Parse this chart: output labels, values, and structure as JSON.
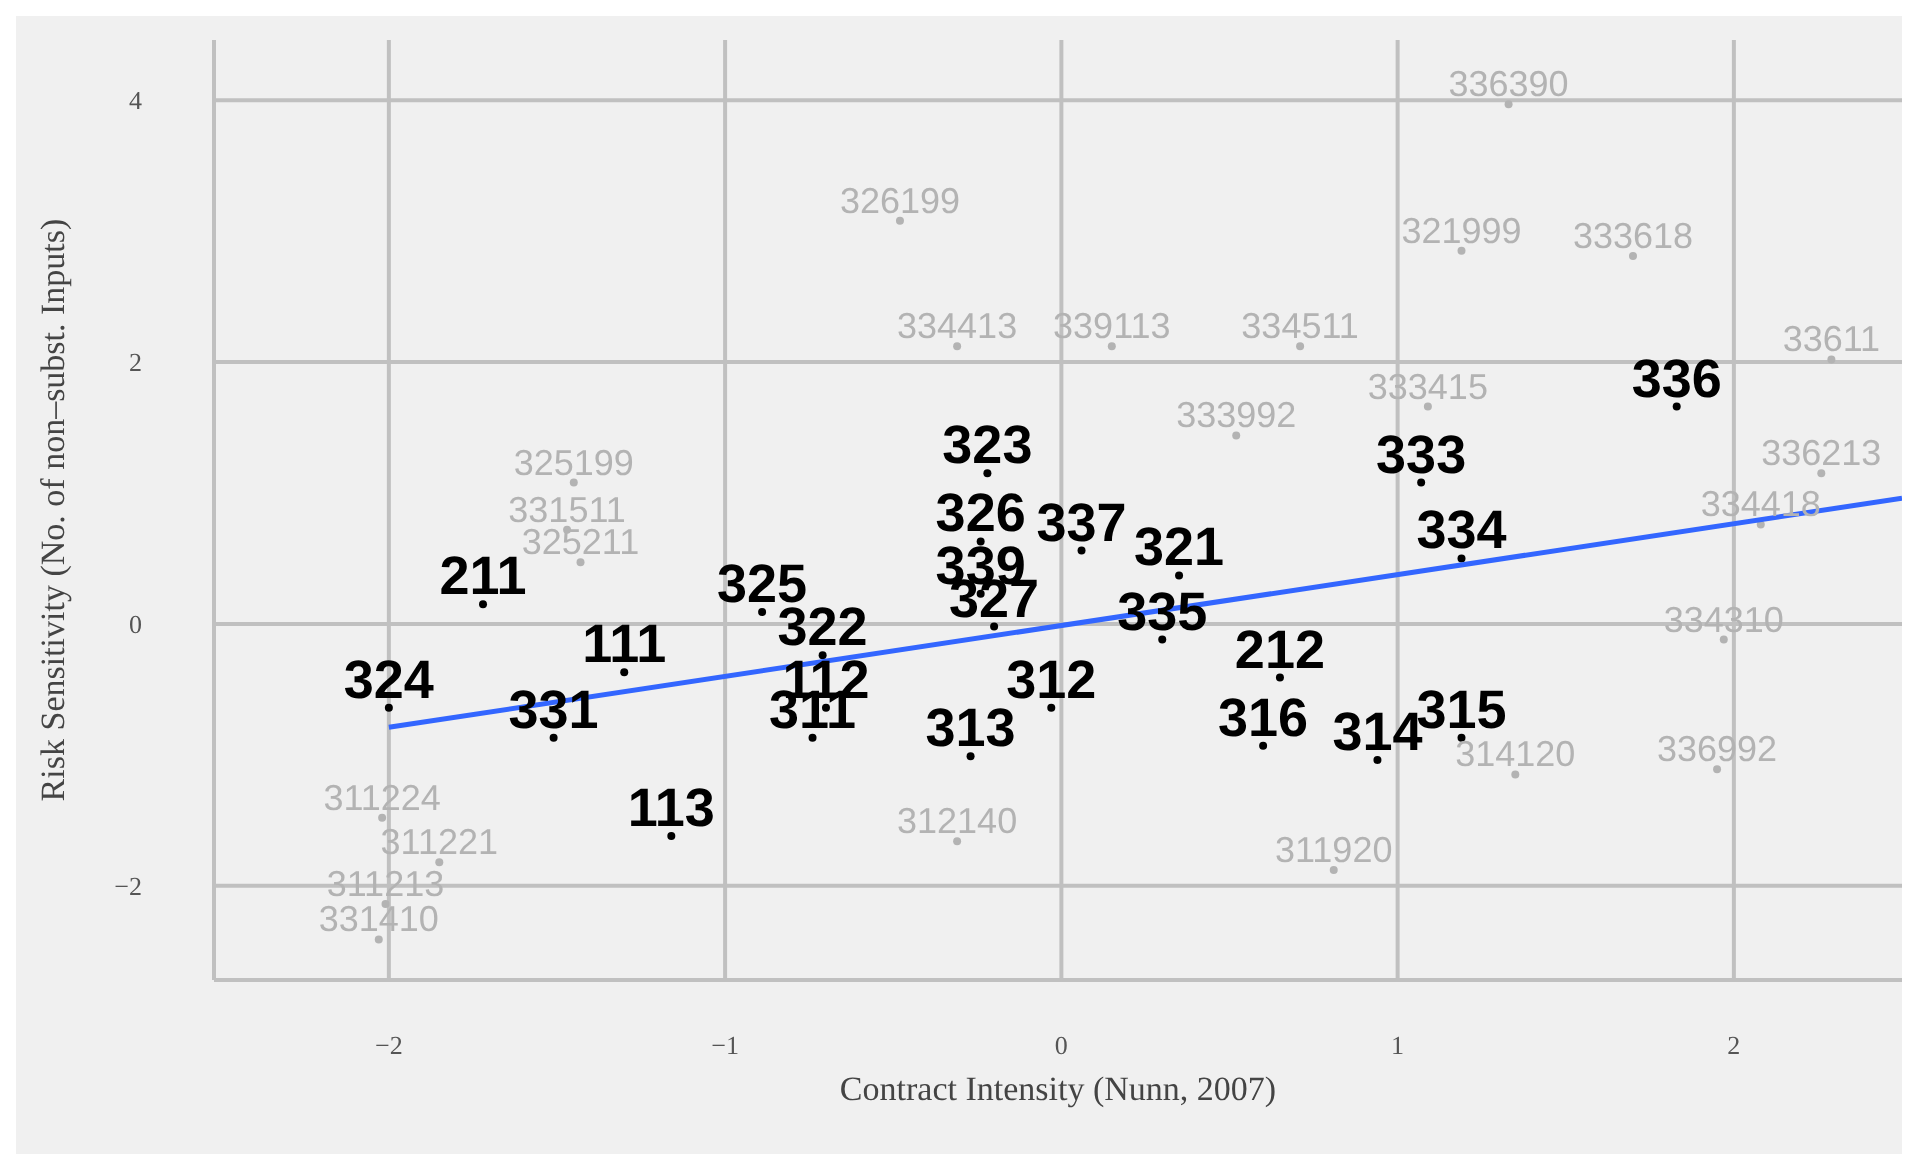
{
  "chart_data": {
    "type": "scatter",
    "xlabel": "Contract Intensity (Nunn, 2007)",
    "ylabel": "Risk Sensitivity (No. of non–subst. Inputs)",
    "xlim": [
      -2.52,
      2.5
    ],
    "ylim": [
      -2.72,
      4.46
    ],
    "xticks": [
      {
        "value": -2,
        "label": "−2"
      },
      {
        "value": -1,
        "label": "−1"
      },
      0,
      1,
      2
    ],
    "yticks": [
      {
        "value": -2,
        "label": "−2"
      },
      0,
      2,
      4
    ],
    "grid": true,
    "series": [
      {
        "type": "scatter",
        "marker": "circle",
        "color": "#b3b3b3",
        "x": [
          1.33,
          -0.48,
          1.19,
          1.7,
          -0.31,
          0.15,
          0.71,
          2.29,
          -1.45,
          -1.47,
          -1.43,
          2.26,
          2.08,
          1.97,
          1.95,
          1.35,
          0.81,
          -2.02,
          -1.85,
          -2.01,
          -2.03,
          -0.31,
          1.09,
          0.52
        ],
        "values": [
          3.97,
          3.08,
          2.85,
          2.81,
          2.12,
          2.12,
          2.12,
          2.02,
          1.08,
          0.72,
          0.47,
          1.15,
          0.76,
          -0.12,
          -1.11,
          -1.15,
          -1.88,
          -1.48,
          -1.82,
          -2.14,
          -2.41,
          -1.66,
          1.66,
          1.44
        ]
      },
      {
        "type": "scatter",
        "marker": "circle",
        "color": "#000000",
        "x": [
          1.83,
          -0.22,
          1.07,
          -0.24,
          0.06,
          1.19,
          0.35,
          -0.24,
          -1.72,
          -0.89,
          -0.2,
          0.3,
          -0.71,
          -1.3,
          0.65,
          -2.0,
          -0.7,
          -0.03,
          1.19,
          -1.51,
          -0.74,
          0.6,
          0.94,
          -0.27,
          -1.16
        ],
        "values": [
          1.66,
          1.15,
          1.08,
          0.63,
          0.56,
          0.5,
          0.37,
          0.23,
          0.15,
          0.09,
          -0.02,
          -0.12,
          -0.24,
          -0.37,
          -0.41,
          -0.64,
          -0.64,
          -0.64,
          -0.87,
          -0.87,
          -0.87,
          -0.93,
          -1.04,
          -1.01,
          -1.62
        ]
      },
      {
        "type": "line",
        "marker": "none",
        "color": "#3366ff",
        "x": [
          -2.0,
          2.5
        ],
        "values": [
          -0.79,
          0.96
        ]
      }
    ],
    "annotations": [
      {
        "text": "336390",
        "x": 1.33,
        "y": 3.97
      },
      {
        "text": "326199",
        "x": -0.48,
        "y": 3.08
      },
      {
        "text": "321999",
        "x": 1.19,
        "y": 2.85
      },
      {
        "text": "333618",
        "x": 1.7,
        "y": 2.81
      },
      {
        "text": "334413",
        "x": -0.31,
        "y": 2.12
      },
      {
        "text": "339113",
        "x": 0.15,
        "y": 2.12
      },
      {
        "text": "334511",
        "x": 0.71,
        "y": 2.12
      },
      {
        "text": "33611",
        "x": 2.29,
        "y": 2.02
      },
      {
        "text": "325199",
        "x": -1.45,
        "y": 1.08
      },
      {
        "text": "331511",
        "x": -1.47,
        "y": 0.72
      },
      {
        "text": "325211",
        "x": -1.43,
        "y": 0.47
      },
      {
        "text": "336213",
        "x": 2.26,
        "y": 1.15
      },
      {
        "text": "334418",
        "x": 2.08,
        "y": 0.76
      },
      {
        "text": "334310",
        "x": 1.97,
        "y": -0.12
      },
      {
        "text": "336992",
        "x": 1.95,
        "y": -1.11
      },
      {
        "text": "314120",
        "x": 1.35,
        "y": -1.15
      },
      {
        "text": "311920",
        "x": 0.81,
        "y": -1.88
      },
      {
        "text": "311224",
        "x": -2.02,
        "y": -1.48
      },
      {
        "text": "311221",
        "x": -1.85,
        "y": -1.82
      },
      {
        "text": "311213",
        "x": -2.01,
        "y": -2.14
      },
      {
        "text": "331410",
        "x": -2.03,
        "y": -2.41
      },
      {
        "text": "312140",
        "x": -0.31,
        "y": -1.66
      },
      {
        "text": "333415",
        "x": 1.09,
        "y": 1.66
      },
      {
        "text": "333992",
        "x": 0.52,
        "y": 1.44
      },
      {
        "text": "336",
        "x": 1.83,
        "y": 1.66
      },
      {
        "text": "323",
        "x": -0.22,
        "y": 1.15
      },
      {
        "text": "333",
        "x": 1.07,
        "y": 1.08
      },
      {
        "text": "326",
        "x": -0.24,
        "y": 0.63
      },
      {
        "text": "337",
        "x": 0.06,
        "y": 0.56
      },
      {
        "text": "334",
        "x": 1.19,
        "y": 0.5
      },
      {
        "text": "321",
        "x": 0.35,
        "y": 0.37
      },
      {
        "text": "339",
        "x": -0.24,
        "y": 0.23
      },
      {
        "text": "211",
        "x": -1.72,
        "y": 0.15
      },
      {
        "text": "325",
        "x": -0.89,
        "y": 0.09
      },
      {
        "text": "327",
        "x": -0.2,
        "y": -0.02
      },
      {
        "text": "335",
        "x": 0.3,
        "y": -0.12
      },
      {
        "text": "322",
        "x": -0.71,
        "y": -0.24
      },
      {
        "text": "111",
        "x": -1.3,
        "y": -0.37
      },
      {
        "text": "212",
        "x": 0.65,
        "y": -0.41
      },
      {
        "text": "324",
        "x": -2.0,
        "y": -0.64
      },
      {
        "text": "112",
        "x": -0.7,
        "y": -0.64
      },
      {
        "text": "312",
        "x": -0.03,
        "y": -0.64
      },
      {
        "text": "315",
        "x": 1.19,
        "y": -0.87
      },
      {
        "text": "331",
        "x": -1.51,
        "y": -0.87
      },
      {
        "text": "311",
        "x": -0.74,
        "y": -0.87
      },
      {
        "text": "316",
        "x": 0.6,
        "y": -0.93
      },
      {
        "text": "314",
        "x": 0.94,
        "y": -1.04
      },
      {
        "text": "313",
        "x": -0.27,
        "y": -1.01
      },
      {
        "text": "113",
        "x": -1.16,
        "y": -1.62
      }
    ]
  }
}
